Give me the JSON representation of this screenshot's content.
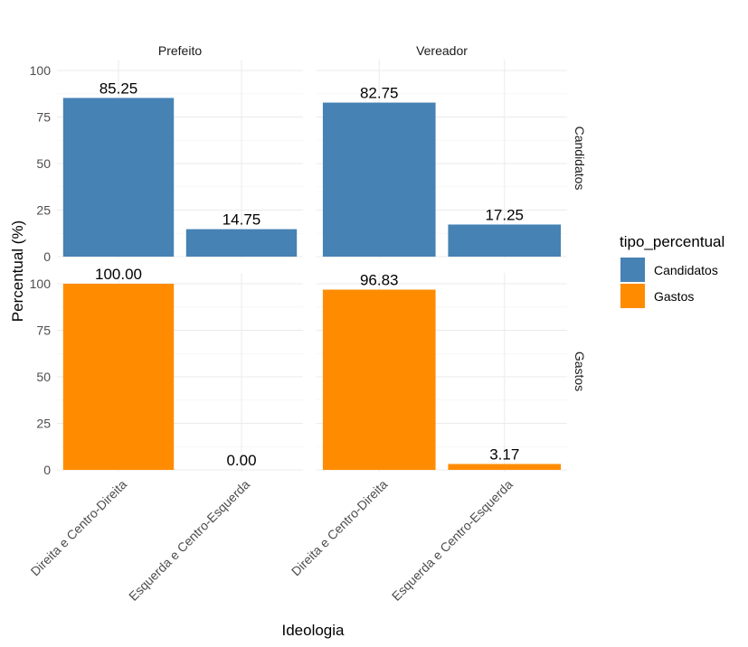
{
  "chart_data": {
    "type": "bar",
    "facet_cols": [
      "Prefeito",
      "Vereador"
    ],
    "facet_rows": [
      "Candidatos",
      "Gastos"
    ],
    "categories": [
      "Direita e Centro-Direita",
      "Esquerda e Centro-Esquerda"
    ],
    "panels": [
      {
        "col": "Prefeito",
        "row": "Candidatos",
        "values": [
          85.25,
          14.75
        ],
        "labels": [
          "85.25",
          "14.75"
        ]
      },
      {
        "col": "Vereador",
        "row": "Candidatos",
        "values": [
          82.75,
          17.25
        ],
        "labels": [
          "82.75",
          "17.25"
        ]
      },
      {
        "col": "Prefeito",
        "row": "Gastos",
        "values": [
          100.0,
          0.0
        ],
        "labels": [
          "100.00",
          "0.00"
        ]
      },
      {
        "col": "Vereador",
        "row": "Gastos",
        "values": [
          96.83,
          3.17
        ],
        "labels": [
          "96.83",
          "3.17"
        ]
      }
    ],
    "xlabel": "Ideologia",
    "ylabel": "Percentual (%)",
    "ylim": [
      0,
      100
    ],
    "yticks": [
      "0",
      "25",
      "50",
      "75",
      "100"
    ],
    "grid": true,
    "legend": {
      "title": "tipo_percentual",
      "position": "right",
      "entries": [
        {
          "name": "Candidatos",
          "color": "#4682B4"
        },
        {
          "name": "Gastos",
          "color": "#FF8C00"
        }
      ]
    }
  }
}
